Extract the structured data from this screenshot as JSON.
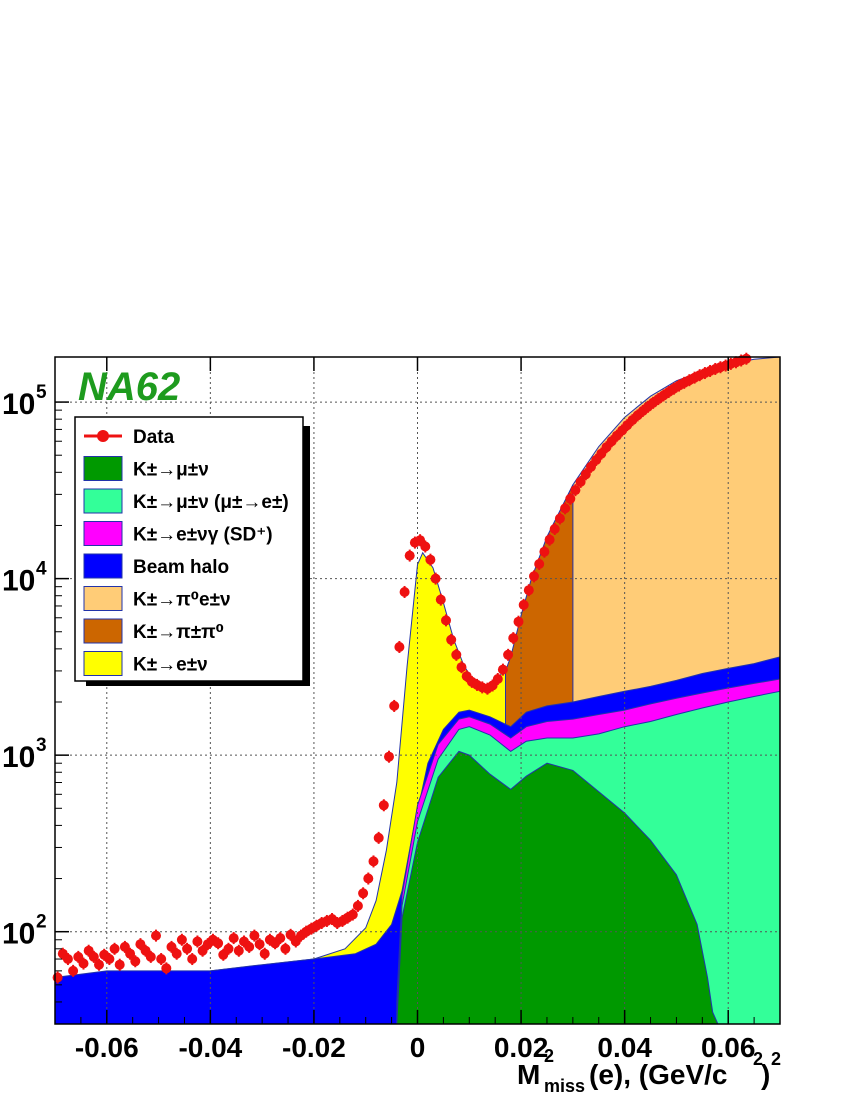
{
  "chart_data": {
    "type": "area",
    "experiment_label": "NA62",
    "xlabel": {
      "base": "M",
      "sub": "miss",
      "sup": "2",
      "rest": "(e), (GeV/c",
      "rest_sup": "2",
      "close": ")",
      "close_sup": "2"
    },
    "ylabel": "",
    "xlim": [
      -0.07,
      0.07
    ],
    "ylim": [
      30,
      180000
    ],
    "y_scale": "log",
    "grid": true,
    "grid_style": "dotted",
    "legend_position": "top-left",
    "x_ticks": [
      -0.06,
      -0.04,
      -0.02,
      0,
      0.02,
      0.04,
      0.06
    ],
    "x_tick_labels": [
      "-0.06",
      "-0.04",
      "-0.02",
      "0",
      "0.02",
      "0.04",
      "0.06"
    ],
    "y_ticks": [
      100,
      1000,
      10000,
      100000
    ],
    "y_tick_labels": [
      {
        "base": "10",
        "exp": "2"
      },
      {
        "base": "10",
        "exp": "3"
      },
      {
        "base": "10",
        "exp": "4"
      },
      {
        "base": "10",
        "exp": "5"
      }
    ],
    "legend": [
      {
        "key": "data",
        "label": "Data",
        "color": "#ee1111",
        "style": "marker"
      },
      {
        "key": "kmu2",
        "label": "K±→μ±ν",
        "color": "#009900",
        "style": "fill"
      },
      {
        "key": "kmu2_decay",
        "label": "K±→μ±ν (μ±→e±)",
        "color": "#33ff99",
        "style": "fill"
      },
      {
        "key": "ke2g",
        "label": "K±→e±νγ (SD⁺)",
        "color": "#ff00ff",
        "style": "fill"
      },
      {
        "key": "halo",
        "label": "Beam halo",
        "color": "#0000ff",
        "style": "fill"
      },
      {
        "key": "ke3",
        "label": "K±→π⁰e±ν",
        "color": "#ffcc77",
        "style": "fill"
      },
      {
        "key": "k2pi",
        "label": "K±→π±π⁰",
        "color": "#cc6600",
        "style": "fill"
      },
      {
        "key": "ke2",
        "label": "K±→e±ν",
        "color": "#ffff00",
        "style": "fill"
      }
    ],
    "series": [
      {
        "key": "kmu2",
        "x": [
          -0.004,
          -0.003,
          0.0,
          0.004,
          0.008,
          0.01,
          0.014,
          0.018,
          0.021,
          0.025,
          0.03,
          0.035,
          0.04,
          0.045,
          0.05,
          0.054,
          0.056,
          0.057,
          0.058
        ],
        "cumulative": [
          30,
          120,
          320,
          750,
          1050,
          1000,
          780,
          640,
          760,
          900,
          820,
          620,
          470,
          330,
          210,
          110,
          55,
          35,
          30
        ]
      },
      {
        "key": "kmu2_decay",
        "x": [
          -0.004,
          -0.003,
          0.0,
          0.004,
          0.008,
          0.01,
          0.014,
          0.018,
          0.021,
          0.025,
          0.03,
          0.035,
          0.04,
          0.045,
          0.05,
          0.055,
          0.06,
          0.065,
          0.07
        ],
        "cumulative": [
          35,
          140,
          420,
          950,
          1400,
          1450,
          1300,
          1050,
          1200,
          1250,
          1250,
          1320,
          1450,
          1550,
          1700,
          1850,
          2000,
          2150,
          2300
        ]
      },
      {
        "key": "ke2g",
        "x": [
          -0.004,
          -0.003,
          0.0,
          0.004,
          0.008,
          0.01,
          0.014,
          0.018,
          0.021,
          0.025,
          0.03,
          0.035,
          0.04,
          0.045,
          0.05,
          0.055,
          0.06,
          0.065,
          0.07
        ],
        "cumulative": [
          40,
          160,
          520,
          1150,
          1600,
          1650,
          1500,
          1250,
          1450,
          1550,
          1600,
          1700,
          1800,
          1950,
          2100,
          2250,
          2400,
          2550,
          2700
        ]
      },
      {
        "key": "halo",
        "x": [
          -0.07,
          -0.06,
          -0.05,
          -0.04,
          -0.03,
          -0.02,
          -0.012,
          -0.008,
          -0.005,
          -0.003,
          -0.001,
          0.002,
          0.005,
          0.008,
          0.01,
          0.014,
          0.018,
          0.021,
          0.025,
          0.03,
          0.035,
          0.04,
          0.045,
          0.05,
          0.055,
          0.06,
          0.065,
          0.07
        ],
        "cumulative": [
          55,
          60,
          60,
          60,
          65,
          70,
          75,
          85,
          110,
          170,
          350,
          900,
          1400,
          1750,
          1800,
          1650,
          1450,
          1750,
          1900,
          2000,
          2150,
          2300,
          2450,
          2650,
          2900,
          3100,
          3300,
          3600
        ]
      },
      {
        "key": "ke3",
        "x": [
          0.013,
          0.016,
          0.018,
          0.02,
          0.022,
          0.025,
          0.03,
          0.035,
          0.04,
          0.045,
          0.05,
          0.055,
          0.06,
          0.065,
          0.07
        ],
        "cumulative": [
          1650,
          1900,
          2700,
          5400,
          9400,
          17000,
          34000,
          56000,
          82000,
          108000,
          132000,
          150000,
          163000,
          175000,
          180000
        ]
      },
      {
        "key": "k2pi",
        "x": [
          0.012,
          0.015,
          0.018,
          0.02,
          0.022,
          0.025,
          0.03
        ],
        "cumulative": [
          1700,
          2100,
          3600,
          6200,
          10000,
          17300,
          34000
        ]
      },
      {
        "key": "ke2",
        "x": [
          -0.07,
          -0.04,
          -0.02,
          -0.014,
          -0.01,
          -0.008,
          -0.006,
          -0.004,
          -0.002,
          0.0,
          0.001,
          0.003,
          0.005,
          0.007,
          0.009,
          0.011,
          0.013,
          0.015,
          0.017
        ],
        "cumulative": [
          55,
          60,
          70,
          80,
          105,
          150,
          290,
          700,
          3200,
          12000,
          14000,
          11500,
          7300,
          4500,
          3200,
          2600,
          2350,
          2500,
          3200
        ]
      }
    ],
    "data_points": {
      "x": [
        -0.0695,
        -0.0685,
        -0.0675,
        -0.0665,
        -0.0655,
        -0.0645,
        -0.0635,
        -0.0625,
        -0.0615,
        -0.0605,
        -0.0595,
        -0.0585,
        -0.0575,
        -0.0565,
        -0.0555,
        -0.0545,
        -0.0535,
        -0.0525,
        -0.0515,
        -0.0505,
        -0.0495,
        -0.0485,
        -0.0475,
        -0.0465,
        -0.0455,
        -0.0445,
        -0.0435,
        -0.0425,
        -0.0415,
        -0.0405,
        -0.0395,
        -0.0385,
        -0.0375,
        -0.0365,
        -0.0355,
        -0.0345,
        -0.0335,
        -0.0325,
        -0.0315,
        -0.0305,
        -0.0295,
        -0.0285,
        -0.0275,
        -0.0265,
        -0.0255,
        -0.0245,
        -0.0235,
        -0.0225,
        -0.0215,
        -0.0205,
        -0.0195,
        -0.0185,
        -0.0175,
        -0.0165,
        -0.0155,
        -0.0145,
        -0.0135,
        -0.0125,
        -0.0115,
        -0.0105,
        -0.0095,
        -0.0085,
        -0.0075,
        -0.0065,
        -0.0055,
        -0.0045,
        -0.0035,
        -0.0025,
        -0.0015,
        -0.0005,
        0.0005,
        0.0015,
        0.0025,
        0.0035,
        0.0045,
        0.0055,
        0.0065,
        0.0075,
        0.0085,
        0.0095,
        0.0105,
        0.0115,
        0.0125,
        0.0135,
        0.0145,
        0.0155,
        0.0165,
        0.0175,
        0.0185,
        0.0195,
        0.0205,
        0.0215,
        0.0225,
        0.0235,
        0.0245,
        0.0255,
        0.0265,
        0.0275,
        0.0285,
        0.0295,
        0.0305,
        0.0315,
        0.0325,
        0.0335,
        0.0345,
        0.0355,
        0.0365,
        0.0375,
        0.0385,
        0.0395,
        0.0405,
        0.0415,
        0.0425,
        0.0435,
        0.0445,
        0.0455,
        0.0465,
        0.0475,
        0.0485,
        0.0495,
        0.0505,
        0.0515,
        0.0525,
        0.0535,
        0.0545,
        0.0555,
        0.0565,
        0.0575,
        0.0585,
        0.0595,
        0.0605,
        0.0615,
        0.0625,
        0.0635
      ],
      "y": [
        55,
        75,
        70,
        60,
        72,
        66,
        78,
        72,
        65,
        74,
        70,
        80,
        65,
        82,
        75,
        68,
        85,
        78,
        72,
        95,
        70,
        62,
        82,
        75,
        90,
        80,
        70,
        88,
        78,
        85,
        90,
        86,
        74,
        80,
        92,
        78,
        88,
        82,
        95,
        85,
        75,
        90,
        86,
        92,
        80,
        96,
        88,
        95,
        100,
        104,
        108,
        112,
        115,
        118,
        112,
        115,
        120,
        125,
        140,
        165,
        200,
        250,
        340,
        520,
        980,
        1900,
        4100,
        8400,
        13500,
        16000,
        16500,
        15200,
        12800,
        10000,
        7600,
        5800,
        4500,
        3700,
        3150,
        2800,
        2600,
        2500,
        2420,
        2380,
        2480,
        2700,
        3050,
        3700,
        4600,
        5700,
        7100,
        8600,
        10300,
        12100,
        14200,
        16600,
        19100,
        21900,
        25000,
        28300,
        31700,
        35300,
        39000,
        43000,
        47000,
        51000,
        55500,
        60000,
        64500,
        69000,
        74000,
        79000,
        84000,
        89000,
        94000,
        99000,
        104000,
        109000,
        114000,
        119000,
        124000,
        128500,
        133000,
        137500,
        142000,
        146000,
        150000,
        154000,
        157500,
        161000,
        164500,
        168000,
        172000,
        176000
      ]
    }
  }
}
